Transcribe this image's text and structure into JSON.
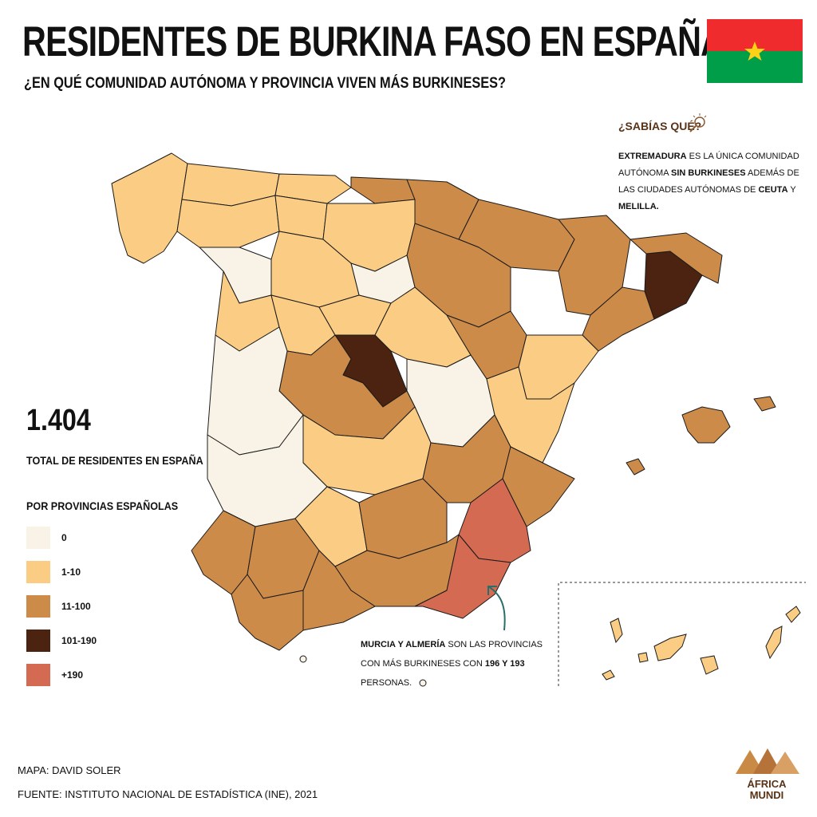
{
  "header": {
    "title": "RESIDENTES DE BURKINA FASO EN ESPAÑA",
    "subtitle": "¿EN QUÉ COMUNIDAD AUTÓNOMA Y PROVINCIA VIVEN MÁS BURKINESES?"
  },
  "flag_colors": {
    "top": "#ef2b2d",
    "bottom": "#009e49",
    "star": "#fcd116"
  },
  "did_you_know": {
    "heading": "¿SABÍAS QUÉ?",
    "icon": "magnifier-icon",
    "p1_bold": "EXTREMADURA",
    "p1_text": " ES LA ÚNICA COMUNIDAD AUTÓNOMA ",
    "p2_bold": "SIN BURKINESES",
    "p2_text": " ADEMÁS DE LAS CIUDADES AUTÓNOMAS DE ",
    "p3_bold": "CEUTA",
    "p3_text": " Y ",
    "p4_bold": "MELILLA."
  },
  "total": {
    "value": "1.404",
    "label": "TOTAL DE RESIDENTES EN ESPAÑA"
  },
  "legend": {
    "title": "POR PROVINCIAS ESPAÑOLAS",
    "items": [
      {
        "label": "0",
        "color": "#f8f3e6"
      },
      {
        "label": "1-10",
        "color": "#fbcd84"
      },
      {
        "label": "11-100",
        "color": "#cd8b4a"
      },
      {
        "label": "101-190",
        "color": "#4c2310"
      },
      {
        "label": "+190",
        "color": "#d56a52"
      }
    ]
  },
  "annotation": {
    "b1": "MURCIA Y ALMERÍA",
    "t1": " SON LAS PROVINCIAS CON MÁS BURKINESES CON ",
    "b2": "196 Y 193",
    "t2": " PERSONAS."
  },
  "credits": {
    "map": "MAPA: DAVID SOLER",
    "source": "FUENTE: INSTITUTO NACIONAL DE ESTADÍSTICA (INE), 2021"
  },
  "logo": {
    "line1": "ÁFRICA",
    "line2": "MUNDI",
    "color": "#c98a45"
  }
}
